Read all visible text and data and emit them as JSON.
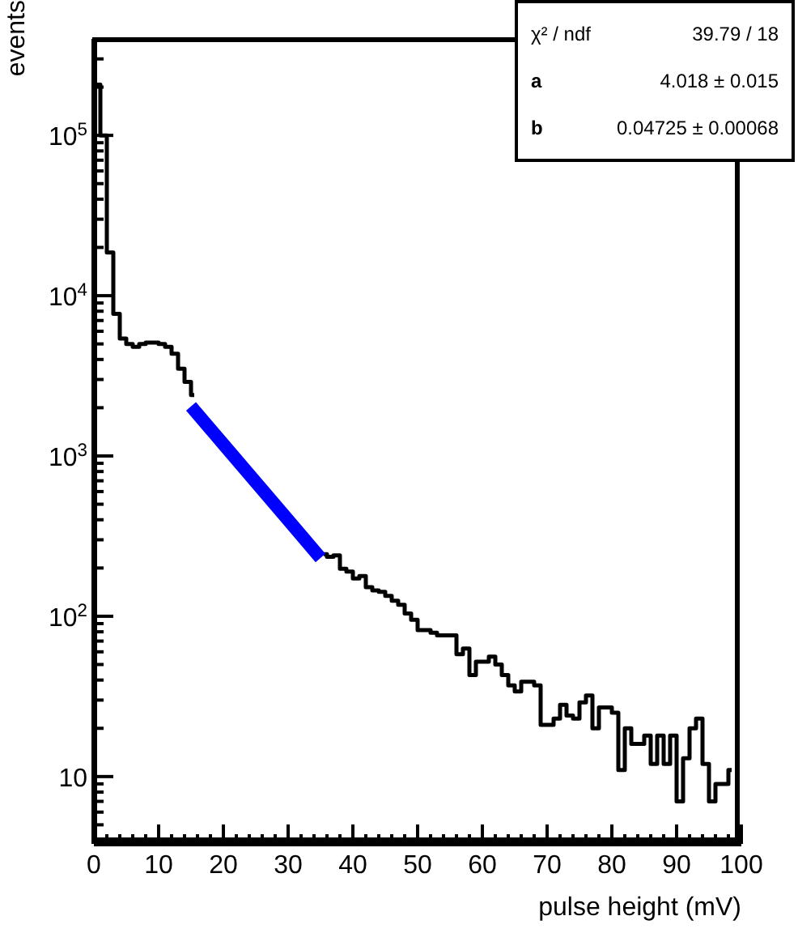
{
  "chart_data": {
    "type": "step",
    "xlabel": "pulse height (mV)",
    "ylabel": "events",
    "log": "y",
    "x": [
      0.5,
      1.5,
      2.5,
      3.5,
      4.5,
      5.5,
      6.5,
      7.5,
      8.5,
      9.5,
      10.5,
      11.5,
      12.5,
      13.5,
      14.5,
      15.5,
      16.5,
      17.5,
      18.5,
      19.5,
      20.5,
      21.5,
      22.5,
      23.5,
      24.5,
      25.5,
      26.5,
      27.5,
      28.5,
      29.5,
      30.5,
      31.5,
      32.5,
      33.5,
      34.5,
      35.5,
      36.5,
      37.5,
      38.5,
      39.5,
      40.5,
      41.5,
      42.5,
      43.5,
      44.5,
      45.5,
      46.5,
      47.5,
      48.5,
      49.5,
      50.5,
      51.5,
      52.5,
      53.5,
      54.5,
      55.5,
      56.5,
      57.5,
      58.5,
      59.5,
      60.5,
      61.5,
      62.5,
      63.5,
      64.5,
      65.5,
      66.5,
      67.5,
      68.5,
      69.5,
      70.5,
      71.5,
      72.5,
      73.5,
      74.5,
      75.5,
      76.5,
      77.5,
      78.5,
      79.5,
      80.5,
      81.5,
      82.5,
      83.5,
      84.5,
      85.5,
      86.5,
      87.5,
      88.5,
      89.5,
      90.5,
      91.5,
      92.5,
      93.5,
      94.5,
      95.5,
      96.5,
      97.5,
      98.5
    ],
    "series": [
      {
        "color": "#000000",
        "values": [
          207000,
          100000,
          18600,
          7700,
          5400,
          5000,
          4800,
          5000,
          5100,
          5100,
          5000,
          4800,
          4350,
          3500,
          2900,
          2400,
          null,
          null,
          null,
          null,
          null,
          null,
          null,
          null,
          null,
          null,
          null,
          null,
          null,
          null,
          null,
          null,
          null,
          null,
          null,
          244,
          235,
          240,
          198,
          190,
          172,
          178,
          152,
          145,
          142,
          134,
          125,
          118,
          104,
          95,
          82,
          82,
          79,
          76,
          76,
          76,
          58,
          63,
          43,
          52,
          52,
          56,
          50,
          43,
          37,
          34,
          39,
          39,
          37,
          21,
          21,
          23,
          28,
          24,
          23,
          29,
          32,
          20,
          27,
          27,
          25,
          11,
          20,
          16,
          16,
          18,
          12,
          18,
          12,
          18,
          7,
          13,
          20,
          23,
          12,
          7,
          9,
          9,
          11
        ]
      },
      {
        "type": "line",
        "color": "#0000ff",
        "x": [
          15,
          20,
          25,
          30,
          35
        ],
        "values": [
          2040,
          1183,
          687,
          399,
          231
        ]
      }
    ],
    "xlim": [
      0,
      100
    ],
    "xticks": [
      0,
      {
        "value": 2,
        "label": null
      },
      {
        "value": 4,
        "label": null
      },
      {
        "value": 6,
        "label": null
      },
      {
        "value": 8,
        "label": null
      },
      10,
      {
        "value": 12,
        "label": null
      },
      {
        "value": 14,
        "label": null
      },
      {
        "value": 16,
        "label": null
      },
      {
        "value": 18,
        "label": null
      },
      20,
      {
        "value": 22,
        "label": null
      },
      {
        "value": 24,
        "label": null
      },
      {
        "value": 26,
        "label": null
      },
      {
        "value": 28,
        "label": null
      },
      30,
      {
        "value": 32,
        "label": null
      },
      {
        "value": 34,
        "label": null
      },
      {
        "value": 36,
        "label": null
      },
      {
        "value": 38,
        "label": null
      },
      40,
      {
        "value": 42,
        "label": null
      },
      {
        "value": 44,
        "label": null
      },
      {
        "value": 46,
        "label": null
      },
      {
        "value": 48,
        "label": null
      },
      50,
      {
        "value": 52,
        "label": null
      },
      {
        "value": 54,
        "label": null
      },
      {
        "value": 56,
        "label": null
      },
      {
        "value": 58,
        "label": null
      },
      60,
      {
        "value": 62,
        "label": null
      },
      {
        "value": 64,
        "label": null
      },
      {
        "value": 66,
        "label": null
      },
      {
        "value": 68,
        "label": null
      },
      70,
      {
        "value": 72,
        "label": null
      },
      {
        "value": 74,
        "label": null
      },
      {
        "value": 76,
        "label": null
      },
      {
        "value": 78,
        "label": null
      },
      80,
      {
        "value": 82,
        "label": null
      },
      {
        "value": 84,
        "label": null
      },
      {
        "value": 86,
        "label": null
      },
      {
        "value": 88,
        "label": null
      },
      90,
      {
        "value": 92,
        "label": null
      },
      {
        "value": 94,
        "label": null
      },
      {
        "value": 96,
        "label": null
      },
      {
        "value": 98,
        "label": null
      },
      100
    ],
    "ylim": [
      3.8,
      400000
    ],
    "yticks": [
      {
        "value": 4,
        "label": null
      },
      {
        "value": 5,
        "label": null
      },
      {
        "value": 6,
        "label": null
      },
      {
        "value": 7,
        "label": null
      },
      {
        "value": 8,
        "label": null
      },
      {
        "value": 9,
        "label": null
      },
      10,
      {
        "value": 20,
        "label": null
      },
      {
        "value": 30,
        "label": null
      },
      {
        "value": 40,
        "label": null
      },
      {
        "value": 50,
        "label": null
      },
      {
        "value": 60,
        "label": null
      },
      {
        "value": 70,
        "label": null
      },
      {
        "value": 80,
        "label": null
      },
      {
        "value": 90,
        "label": null
      },
      {
        "value": 100,
        "label": "10$^{2}$"
      },
      {
        "value": 200,
        "label": null
      },
      {
        "value": 300,
        "label": null
      },
      {
        "value": 400,
        "label": null
      },
      {
        "value": 500,
        "label": null
      },
      {
        "value": 600,
        "label": null
      },
      {
        "value": 700,
        "label": null
      },
      {
        "value": 800,
        "label": null
      },
      {
        "value": 900,
        "label": null
      },
      {
        "value": 1000,
        "label": "10$^{3}$"
      },
      {
        "value": 2000,
        "label": null
      },
      {
        "value": 3000,
        "label": null
      },
      {
        "value": 4000,
        "label": null
      },
      {
        "value": 5000,
        "label": null
      },
      {
        "value": 6000,
        "label": null
      },
      {
        "value": 7000,
        "label": null
      },
      {
        "value": 8000,
        "label": null
      },
      {
        "value": 9000,
        "label": null
      },
      {
        "value": 10000,
        "label": "10$^{4}$"
      },
      {
        "value": 20000,
        "label": null
      },
      {
        "value": 30000,
        "label": null
      },
      {
        "value": 40000,
        "label": null
      },
      {
        "value": 50000,
        "label": null
      },
      {
        "value": 60000,
        "label": null
      },
      {
        "value": 70000,
        "label": null
      },
      {
        "value": 80000,
        "label": null
      },
      {
        "value": 90000,
        "label": null
      },
      {
        "value": 100000,
        "label": "10$^{5}$"
      },
      {
        "value": 200000,
        "label": null
      },
      {
        "value": 300000,
        "label": null
      }
    ],
    "annotations": [
      "χ² / ndf",
      "39.79 / 18",
      "a",
      "4.018 ± 0.015",
      "b",
      "0.04725 ± 0.00068"
    ]
  }
}
